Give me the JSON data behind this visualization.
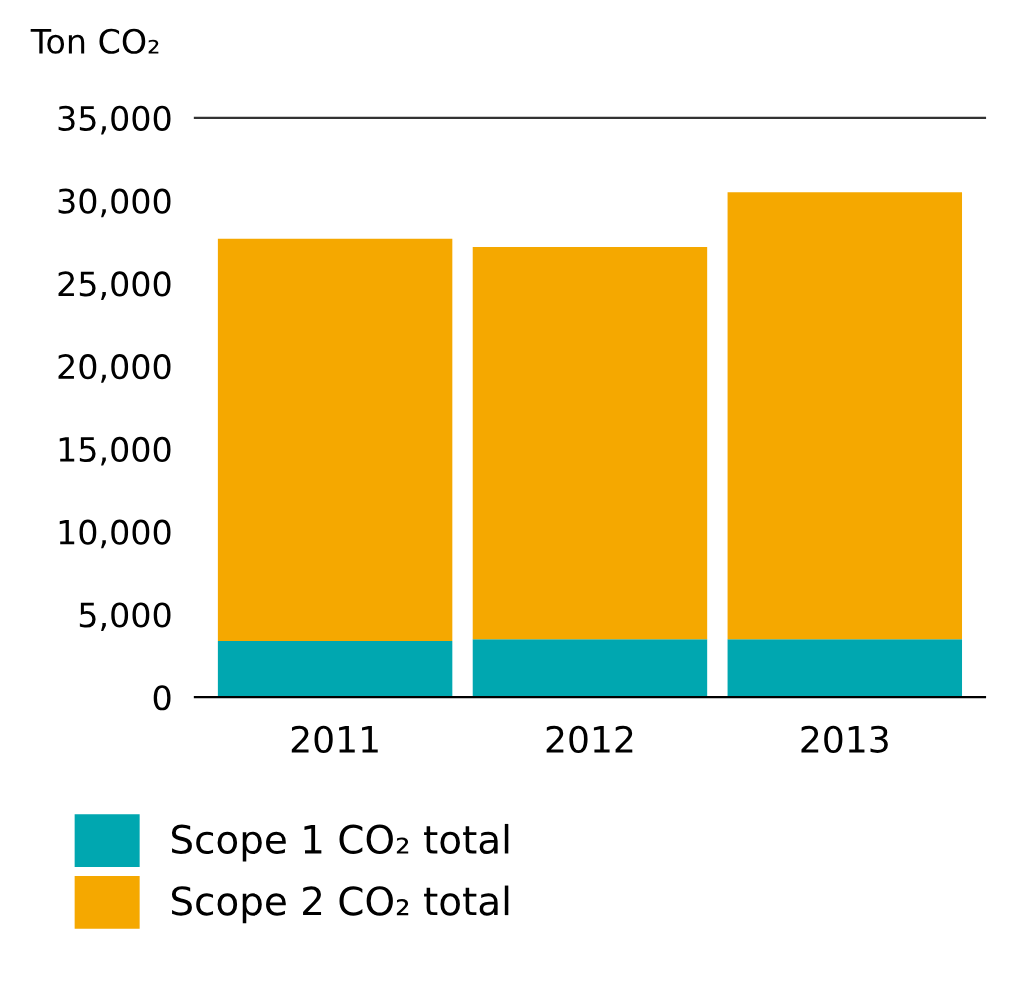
{
  "chart_data": {
    "type": "bar",
    "stacked": true,
    "ylabel": "Ton CO₂",
    "categories": [
      "2011",
      "2012",
      "2013"
    ],
    "series": [
      {
        "name": "Scope 1 CO₂ total",
        "color": "#00a7b0",
        "values": [
          3400,
          3500,
          3500
        ]
      },
      {
        "name": "Scope 2 CO₂ total",
        "color": "#f5a800",
        "values": [
          24300,
          23700,
          27000
        ]
      }
    ],
    "ylim": [
      0,
      35000
    ],
    "yticks": [
      0,
      {
        "value": 5000,
        "label": "5,000"
      },
      {
        "value": 10000,
        "label": "10,000"
      },
      {
        "value": 15000,
        "label": "15,000"
      },
      {
        "value": 20000,
        "label": "20,000"
      },
      {
        "value": 25000,
        "label": "25,000"
      },
      {
        "value": 30000,
        "label": "30,000"
      },
      {
        "value": 35000,
        "label": "35,000"
      }
    ],
    "grid": false,
    "legend": "bottom"
  }
}
